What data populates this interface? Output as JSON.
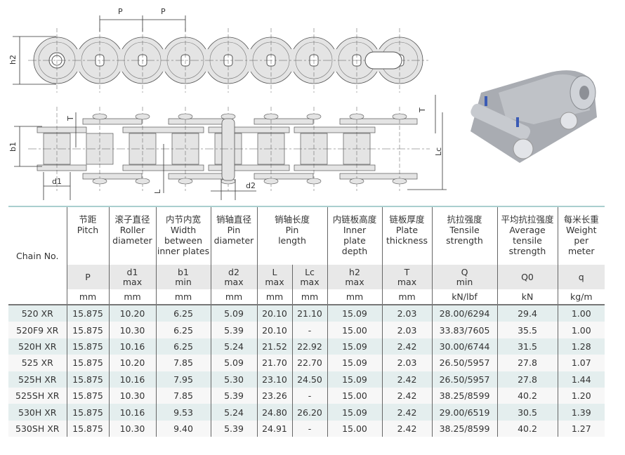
{
  "drawing_labels": {
    "pitch_1": "P",
    "pitch_2": "P",
    "h2": "h2",
    "t_left": "T",
    "b1": "b1",
    "d1": "d1",
    "l": "L",
    "d2": "d2",
    "t_right": "T",
    "lc": "Lc"
  },
  "colors": {
    "header_rule": "#a9cfcf",
    "row_odd": "#e4eeee",
    "row_even": "#f7f7f7",
    "symbol_row": "#e8e8e8"
  },
  "table": {
    "chain_no_header": "Chain No.",
    "columns": [
      {
        "cn": "节距",
        "en": [
          "Pitch"
        ],
        "symbols": [
          {
            "sym": "P",
            "sub": ""
          }
        ],
        "units": [
          "mm"
        ]
      },
      {
        "cn": "滚子直径",
        "en": [
          "Roller",
          "diameter"
        ],
        "symbols": [
          {
            "sym": "d1",
            "sub": "max"
          }
        ],
        "units": [
          "mm"
        ]
      },
      {
        "cn": "内节内宽",
        "en": [
          "Width",
          "between",
          "inner plates"
        ],
        "symbols": [
          {
            "sym": "b1",
            "sub": "min"
          }
        ],
        "units": [
          "mm"
        ]
      },
      {
        "cn": "销轴直径",
        "en": [
          "Pin",
          "diameter"
        ],
        "symbols": [
          {
            "sym": "d2",
            "sub": "max"
          }
        ],
        "units": [
          "mm"
        ]
      },
      {
        "cn": "销轴长度",
        "en": [
          "Pin",
          "length"
        ],
        "symbols": [
          {
            "sym": "L",
            "sub": "max"
          },
          {
            "sym": "Lc",
            "sub": "max"
          }
        ],
        "units": [
          "mm",
          "mm"
        ]
      },
      {
        "cn": "内链板高度",
        "en": [
          "Inner",
          "plate",
          "depth"
        ],
        "symbols": [
          {
            "sym": "h2",
            "sub": "max"
          }
        ],
        "units": [
          "mm"
        ]
      },
      {
        "cn": "链板厚度",
        "en": [
          "Plate",
          "thickness"
        ],
        "symbols": [
          {
            "sym": "T",
            "sub": "max"
          }
        ],
        "units": [
          "mm"
        ]
      },
      {
        "cn": "抗拉强度",
        "en": [
          "Tensile",
          "strength"
        ],
        "symbols": [
          {
            "sym": "Q",
            "sub": "min"
          }
        ],
        "units": [
          "kN/lbf"
        ]
      },
      {
        "cn": "平均抗拉强度",
        "en": [
          "Average",
          "tensile",
          "strength"
        ],
        "symbols": [
          {
            "sym": "Q0",
            "sub": ""
          }
        ],
        "units": [
          "kN"
        ]
      },
      {
        "cn": "每米长重",
        "en": [
          "Weight",
          "per",
          "meter"
        ],
        "symbols": [
          {
            "sym": "q",
            "sub": ""
          }
        ],
        "units": [
          "kg/m"
        ]
      }
    ],
    "rows": [
      [
        "520 XR",
        "15.875",
        "10.20",
        "6.25",
        "5.09",
        "20.10",
        "21.10",
        "15.09",
        "2.03",
        "28.00/6294",
        "29.4",
        "1.00"
      ],
      [
        "520F9 XR",
        "15.875",
        "10.30",
        "6.25",
        "5.39",
        "20.10",
        "-",
        "15.00",
        "2.03",
        "33.83/7605",
        "35.5",
        "1.00"
      ],
      [
        "520H XR",
        "15.875",
        "10.16",
        "6.25",
        "5.24",
        "21.52",
        "22.92",
        "15.09",
        "2.42",
        "30.00/6744",
        "31.5",
        "1.28"
      ],
      [
        "525 XR",
        "15.875",
        "10.20",
        "7.85",
        "5.09",
        "21.70",
        "22.70",
        "15.09",
        "2.03",
        "26.50/5957",
        "27.8",
        "1.07"
      ],
      [
        "525H XR",
        "15.875",
        "10.16",
        "7.95",
        "5.30",
        "23.10",
        "24.50",
        "15.09",
        "2.42",
        "26.50/5957",
        "27.8",
        "1.44"
      ],
      [
        "525SH XR",
        "15.875",
        "10.30",
        "7.85",
        "5.39",
        "23.26",
        "-",
        "15.00",
        "2.42",
        "38.25/8599",
        "40.2",
        "1.20"
      ],
      [
        "530H XR",
        "15.875",
        "10.16",
        "9.53",
        "5.24",
        "24.80",
        "26.20",
        "15.09",
        "2.42",
        "29.00/6519",
        "30.5",
        "1.39"
      ],
      [
        "530SH XR",
        "15.875",
        "10.30",
        "9.40",
        "5.39",
        "24.91",
        "-",
        "15.00",
        "2.42",
        "38.25/8599",
        "40.2",
        "1.27"
      ]
    ]
  }
}
